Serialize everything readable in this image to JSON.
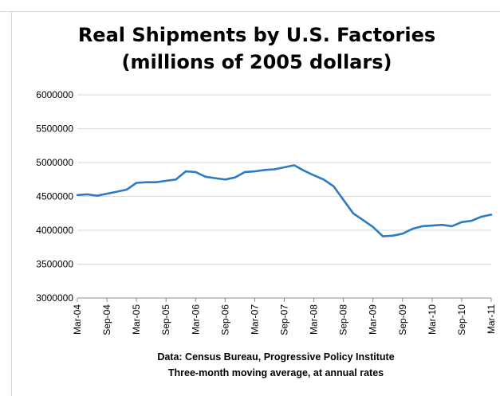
{
  "chart_data": {
    "type": "line",
    "title": [
      "Real Shipments by U.S. Factories",
      "(millions of 2005 dollars)"
    ],
    "xlabel": "",
    "ylabel": "",
    "ylim": [
      3000000,
      6000000
    ],
    "yticks": [
      "6000000",
      "5500000",
      "5000000",
      "4500000",
      "4000000",
      "3500000",
      "3000000"
    ],
    "xticks": [
      "Mar-04",
      "Sep-04",
      "Mar-05",
      "Sep-05",
      "Mar-06",
      "Sep-06",
      "Mar-07",
      "Sep-07",
      "Mar-08",
      "Sep-08",
      "Mar-09",
      "Sep-09",
      "Mar-10",
      "Sep-10",
      "Mar-11"
    ],
    "grid": "horizontal",
    "legend": "none",
    "series_color": "#2e7bc4",
    "series": [
      {
        "x": [
          "2004-03",
          "2004-05",
          "2004-07",
          "2004-09",
          "2004-11",
          "2005-01",
          "2005-03",
          "2005-05",
          "2005-07",
          "2005-09",
          "2005-11",
          "2006-01",
          "2006-03",
          "2006-05",
          "2006-07",
          "2006-09",
          "2006-11",
          "2007-01",
          "2007-03",
          "2007-05",
          "2007-07",
          "2007-09",
          "2007-11",
          "2008-01",
          "2008-03",
          "2008-05",
          "2008-07",
          "2008-09",
          "2008-11",
          "2009-01",
          "2009-03",
          "2009-05",
          "2009-07",
          "2009-09",
          "2009-11",
          "2010-01",
          "2010-03",
          "2010-05",
          "2010-07",
          "2010-09",
          "2010-11",
          "2011-01",
          "2011-03"
        ],
        "values": [
          4520000,
          4530000,
          4510000,
          4540000,
          4570000,
          4600000,
          4700000,
          4710000,
          4710000,
          4730000,
          4750000,
          4870000,
          4860000,
          4790000,
          4770000,
          4750000,
          4780000,
          4860000,
          4870000,
          4890000,
          4900000,
          4930000,
          4960000,
          4880000,
          4810000,
          4750000,
          4650000,
          4450000,
          4250000,
          4150000,
          4050000,
          3910000,
          3920000,
          3950000,
          4020000,
          4060000,
          4070000,
          4080000,
          4060000,
          4120000,
          4140000,
          4200000,
          4230000
        ]
      }
    ],
    "notes": [
      "Data: Census Bureau, Progressive Policy Institute",
      "Three-month moving average, at annual rates"
    ]
  }
}
